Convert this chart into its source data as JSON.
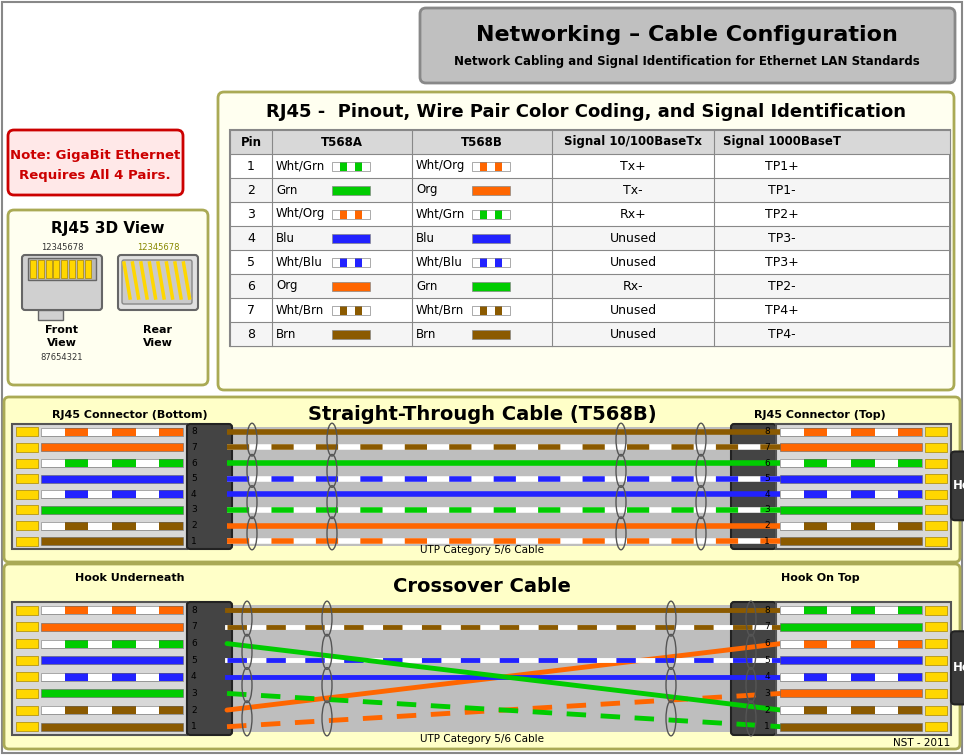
{
  "title": "Networking – Cable Configuration",
  "subtitle": "Network Cabling and Signal Identification for Ethernet LAN Standards",
  "table_title": "RJ45 -  Pinout, Wire Pair Color Coding, and Signal Identification",
  "table_headers": [
    "Pin",
    "T568A",
    "T568B",
    "Signal 10/100BaseTx",
    "Signal 1000BaseT"
  ],
  "table_rows": [
    [
      "1",
      "Wht/Grn",
      "Wht/Org",
      "Tx+",
      "TP1+"
    ],
    [
      "2",
      "Grn",
      "Org",
      "Tx-",
      "TP1-"
    ],
    [
      "3",
      "Wht/Org",
      "Wht/Grn",
      "Rx+",
      "TP2+"
    ],
    [
      "4",
      "Blu",
      "Blu",
      "Unused",
      "TP3-"
    ],
    [
      "5",
      "Wht/Blu",
      "Wht/Blu",
      "Unused",
      "TP3+"
    ],
    [
      "6",
      "Org",
      "Grn",
      "Rx-",
      "TP2-"
    ],
    [
      "7",
      "Wht/Brn",
      "Wht/Brn",
      "Unused",
      "TP4+"
    ],
    [
      "8",
      "Brn",
      "Brn",
      "Unused",
      "TP4-"
    ]
  ],
  "wire_A": [
    [
      "#FFFFFF",
      "#00CC00"
    ],
    [
      "#00CC00",
      "#00CC00"
    ],
    [
      "#FFFFFF",
      "#FF6600"
    ],
    [
      "#2222FF",
      "#2222FF"
    ],
    [
      "#FFFFFF",
      "#2222FF"
    ],
    [
      "#FF6600",
      "#FF6600"
    ],
    [
      "#FFFFFF",
      "#8B5A00"
    ],
    [
      "#8B5A00",
      "#8B5A00"
    ]
  ],
  "wire_B": [
    [
      "#FFFFFF",
      "#FF6600"
    ],
    [
      "#FF6600",
      "#FF6600"
    ],
    [
      "#FFFFFF",
      "#00CC00"
    ],
    [
      "#2222FF",
      "#2222FF"
    ],
    [
      "#FFFFFF",
      "#2222FF"
    ],
    [
      "#00CC00",
      "#00CC00"
    ],
    [
      "#FFFFFF",
      "#8B5A00"
    ],
    [
      "#8B5A00",
      "#8B5A00"
    ]
  ],
  "st_wire_colors": [
    [
      "#FFFFFF",
      "#FF6600"
    ],
    [
      "#FF6600",
      "#FF6600"
    ],
    [
      "#FFFFFF",
      "#00CC00"
    ],
    [
      "#2222FF",
      "#2222FF"
    ],
    [
      "#FFFFFF",
      "#2222FF"
    ],
    [
      "#00CC00",
      "#00CC00"
    ],
    [
      "#FFFFFF",
      "#8B5A00"
    ],
    [
      "#8B5A00",
      "#8B5A00"
    ]
  ],
  "co_left_colors": [
    [
      "#FFFFFF",
      "#FF6600"
    ],
    [
      "#FF6600",
      "#FF6600"
    ],
    [
      "#FFFFFF",
      "#00CC00"
    ],
    [
      "#2222FF",
      "#2222FF"
    ],
    [
      "#FFFFFF",
      "#2222FF"
    ],
    [
      "#00CC00",
      "#00CC00"
    ],
    [
      "#FFFFFF",
      "#8B5A00"
    ],
    [
      "#8B5A00",
      "#8B5A00"
    ]
  ],
  "co_right_colors": [
    [
      "#FFFFFF",
      "#00CC00"
    ],
    [
      "#00CC00",
      "#00CC00"
    ],
    [
      "#FFFFFF",
      "#FF6600"
    ],
    [
      "#2222FF",
      "#2222FF"
    ],
    [
      "#FFFFFF",
      "#2222FF"
    ],
    [
      "#FF6600",
      "#FF6600"
    ],
    [
      "#FFFFFF",
      "#8B5A00"
    ],
    [
      "#8B5A00",
      "#8B5A00"
    ]
  ],
  "cross_map": [
    2,
    5,
    0,
    3,
    4,
    1,
    6,
    7
  ],
  "bg_yellow": "#FFFFC8",
  "bg_white": "#FFFFFF",
  "gray_title": "#C0C0C0",
  "table_bg": "#FFFFF0",
  "note_bg": "#FFE8E8",
  "note_red": "#CC0000",
  "rj45_bg": "#FFFFF0",
  "conn_gray": "#D8D8D8",
  "dark_gray": "#444444",
  "wire_yellow": "#FFD700",
  "hook_dark": "#3A3A3A"
}
